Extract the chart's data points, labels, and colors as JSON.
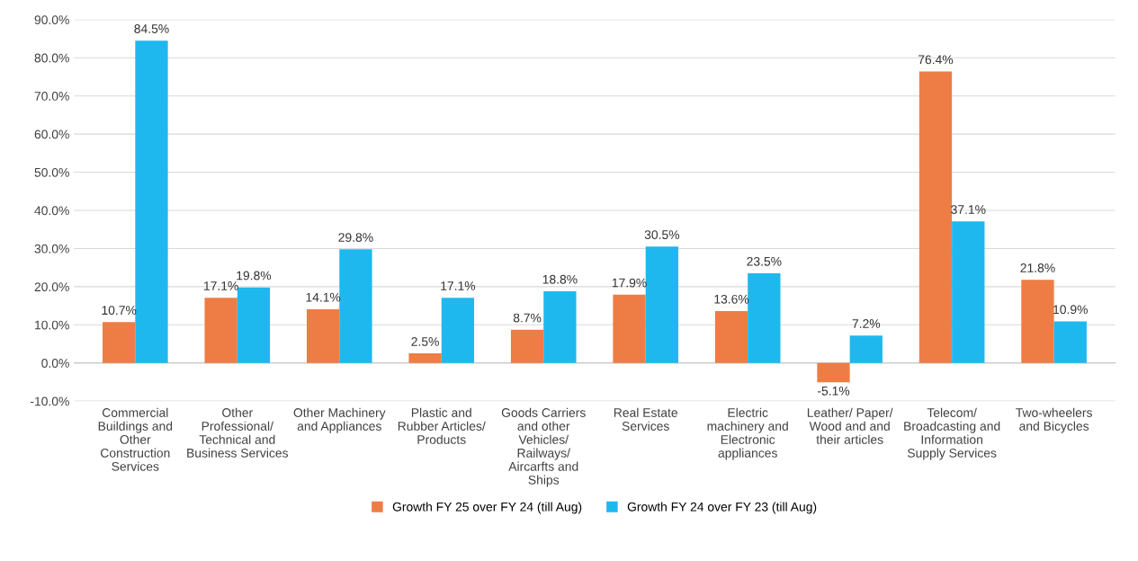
{
  "chart_data": {
    "type": "bar",
    "categories": [
      "Commercial\nBuildings and\nOther\nConstruction\nServices",
      "Other\nProfessional/\nTechnical and\nBusiness Services",
      "Other Machinery\nand Appliances",
      "Plastic and\nRubber Articles/\nProducts",
      "Goods Carriers\nand other\nVehicles/\nRailways/\nAircarfts and\nShips",
      "Real Estate\nServices",
      "Electric\nmachinery and\nElectronic\nappliances",
      "Leather/ Paper/\nWood and and\ntheir articles",
      "Telecom/\nBroadcasting and\nInformation\nSupply Services",
      "Two-wheelers\nand Bicycles"
    ],
    "series": [
      {
        "name": "Growth FY 25 over FY 24 (till Aug)",
        "color": "#ed7d45",
        "values": [
          10.7,
          17.1,
          14.1,
          2.5,
          8.7,
          17.9,
          13.6,
          -5.1,
          76.4,
          21.8
        ],
        "value_labels": [
          "10.7%",
          "17.1%",
          "14.1%",
          "2.5%",
          "8.7%",
          "17.9%",
          "13.6%",
          "-5.1%",
          "76.4%",
          "21.8%"
        ]
      },
      {
        "name": "Growth FY 24 over FY 23 (till Aug)",
        "color": "#1fb8ee",
        "values": [
          84.5,
          19.8,
          29.8,
          17.1,
          18.8,
          30.5,
          23.5,
          7.2,
          37.1,
          10.9
        ],
        "value_labels": [
          "84.5%",
          "19.8%",
          "29.8%",
          "17.1%",
          "18.8%",
          "30.5%",
          "23.5%",
          "7.2%",
          "37.1%",
          "10.9%"
        ]
      }
    ],
    "ylim": [
      -10,
      90
    ],
    "yticks": [
      {
        "value": -10,
        "label": "-10.0%"
      },
      {
        "value": 0,
        "label": "0.0%"
      },
      {
        "value": 10,
        "label": "10.0%"
      },
      {
        "value": 20,
        "label": "20.0%"
      },
      {
        "value": 30,
        "label": "30.0%"
      },
      {
        "value": 40,
        "label": "40.0%"
      },
      {
        "value": 50,
        "label": "50.0%"
      },
      {
        "value": 60,
        "label": "60.0%"
      },
      {
        "value": 70,
        "label": "70.0%"
      },
      {
        "value": 80,
        "label": "80.0%"
      },
      {
        "value": 90,
        "label": "90.0%"
      }
    ],
    "grid": "y",
    "legend": "bottom"
  }
}
